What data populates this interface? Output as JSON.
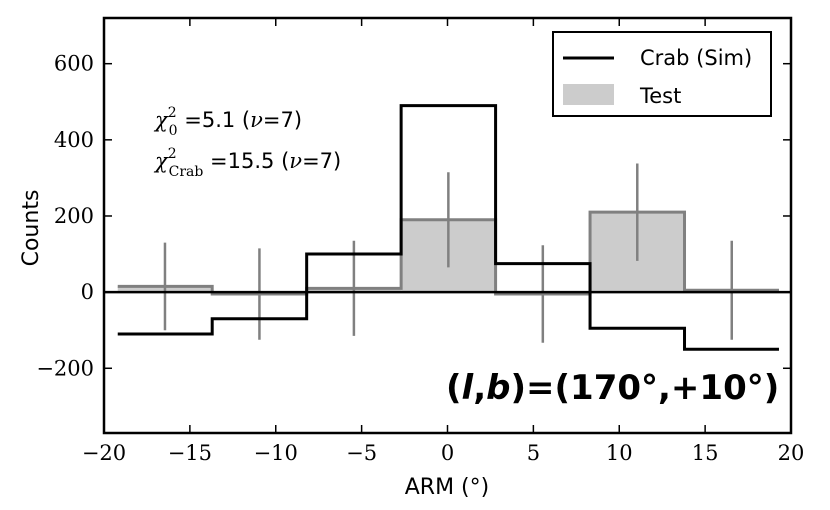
{
  "chart_data": {
    "type": "histogram",
    "title": "",
    "xlabel": "ARM (°)",
    "ylabel": "Counts",
    "xlim": [
      -20,
      20
    ],
    "ylim": [
      -370,
      720
    ],
    "x_ticks": [
      -20,
      -15,
      -10,
      -5,
      0,
      5,
      10,
      15,
      20
    ],
    "x_tick_labels": [
      "−20",
      "−15",
      "−10",
      "−5",
      "0",
      "5",
      "10",
      "15",
      "20"
    ],
    "y_ticks": [
      -200,
      0,
      200,
      400,
      600
    ],
    "y_tick_labels": [
      "−200",
      "0",
      "200",
      "400",
      "600"
    ],
    "bin_edges": [
      -19.2,
      -13.7,
      -8.2,
      -2.7,
      2.8,
      8.3,
      13.8,
      19.3
    ],
    "series": [
      {
        "name": "Crab (Sim)",
        "style": "step",
        "color": "#000000",
        "values": [
          -110,
          -70,
          100,
          490,
          75,
          -95,
          -150
        ]
      },
      {
        "name": "Test",
        "style": "filled-step",
        "color": "#808080",
        "fill": "#cccccc",
        "values": [
          15,
          -5,
          10,
          190,
          -5,
          210,
          5
        ],
        "errors": [
          115,
          120,
          125,
          125,
          128,
          128,
          130
        ]
      }
    ],
    "legend": {
      "position": "top-right",
      "entries": [
        "Crab (Sim)",
        "Test"
      ]
    },
    "zero_line": true,
    "annotations": {
      "chi0_label": "χ",
      "chi0_sup": "2",
      "chi0_sub": "0",
      "chi0_value": " =5.1 (",
      "chi0_nu": "ν",
      "chi0_dof": "=7)",
      "chicrab_label": "χ",
      "chicrab_sup": "2",
      "chicrab_sub": "Crab",
      "chicrab_value": " =15.5 (",
      "chicrab_nu": "ν",
      "chicrab_dof": "=7)",
      "coords_prefix": "(",
      "coords_l": "l",
      "coords_sep": ",",
      "coords_b": "b",
      "coords_rest": ")=(170°,+10°)"
    }
  }
}
